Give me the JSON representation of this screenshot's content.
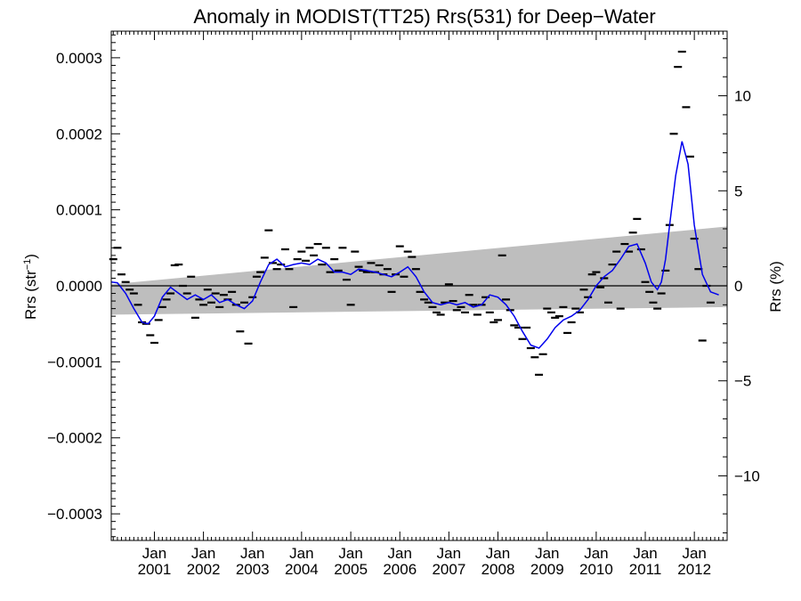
{
  "chart_data": {
    "type": "scatter",
    "title": "Anomaly in MODIST(TT25) Rrs(531) for Deep−Water",
    "ylabel_left": "Rrs (str",
    "ylabel_left_sup": "−1",
    "ylabel_left_close": ")",
    "ylabel_right": "Rrs (%)",
    "x_range": [
      "2000-02-15",
      "2012-09-01"
    ],
    "y_range": [
      -0.000335,
      0.000335
    ],
    "y_right_range": [
      -13.4,
      13.4
    ],
    "x_ticks": [
      {
        "date": "2001-01-01",
        "line1": "Jan",
        "line2": "2001"
      },
      {
        "date": "2002-01-01",
        "line1": "Jan",
        "line2": "2002"
      },
      {
        "date": "2003-01-01",
        "line1": "Jan",
        "line2": "2003"
      },
      {
        "date": "2004-01-01",
        "line1": "Jan",
        "line2": "2004"
      },
      {
        "date": "2005-01-01",
        "line1": "Jan",
        "line2": "2005"
      },
      {
        "date": "2006-01-01",
        "line1": "Jan",
        "line2": "2006"
      },
      {
        "date": "2007-01-01",
        "line1": "Jan",
        "line2": "2007"
      },
      {
        "date": "2008-01-01",
        "line1": "Jan",
        "line2": "2008"
      },
      {
        "date": "2009-01-01",
        "line1": "Jan",
        "line2": "2009"
      },
      {
        "date": "2010-01-01",
        "line1": "Jan",
        "line2": "2010"
      },
      {
        "date": "2011-01-01",
        "line1": "Jan",
        "line2": "2011"
      },
      {
        "date": "2012-01-01",
        "line1": "Jan",
        "line2": "2012"
      }
    ],
    "y_left_ticks": [
      {
        "value": 0.0003,
        "label": "0.0003"
      },
      {
        "value": 0.0002,
        "label": "0.0002"
      },
      {
        "value": 0.0001,
        "label": "0.0001"
      },
      {
        "value": 0.0,
        "label": "0.0000"
      },
      {
        "value": -0.0001,
        "label": "−0.0001"
      },
      {
        "value": -0.0002,
        "label": "−0.0002"
      },
      {
        "value": -0.0003,
        "label": "−0.0003"
      }
    ],
    "y_right_ticks": [
      {
        "value": 10,
        "label": "10"
      },
      {
        "value": 5,
        "label": "5"
      },
      {
        "value": 0,
        "label": "0"
      },
      {
        "value": -5,
        "label": "−5"
      },
      {
        "value": -10,
        "label": "−10"
      }
    ],
    "colors": {
      "smooth_line": "#0000ee",
      "band": "#bebebe",
      "points": "#000000",
      "zero_line": "#000000"
    },
    "confidence_band": {
      "x": [
        "2000-02-15",
        "2012-09-01"
      ],
      "upper": [
        2e-06,
        7.8e-05
      ],
      "lower": [
        -3.8e-05,
        -2.8e-05
      ]
    },
    "series": [
      {
        "style": "dash-marker",
        "points": [
          [
            "2000-03-01",
            3.5e-05
          ],
          [
            "2000-04-01",
            5e-05
          ],
          [
            "2000-05-01",
            1.5e-05
          ],
          [
            "2000-06-01",
            5e-06
          ],
          [
            "2000-07-01",
            -5e-06
          ],
          [
            "2000-08-01",
            -1e-05
          ],
          [
            "2000-09-01",
            -2.5e-05
          ],
          [
            "2000-10-01",
            -4.8e-05
          ],
          [
            "2000-11-01",
            -5e-05
          ],
          [
            "2000-12-01",
            -6.5e-05
          ],
          [
            "2001-01-01",
            -7.5e-05
          ],
          [
            "2001-02-01",
            -4.5e-05
          ],
          [
            "2001-03-01",
            -2.8e-05
          ],
          [
            "2001-04-01",
            -1.8e-05
          ],
          [
            "2001-05-01",
            -1e-05
          ],
          [
            "2001-06-01",
            2.7e-05
          ],
          [
            "2001-07-01",
            2.8e-05
          ],
          [
            "2001-08-01",
            0.0
          ],
          [
            "2001-09-01",
            -1e-05
          ],
          [
            "2001-10-01",
            1.2e-05
          ],
          [
            "2001-11-01",
            -4.2e-05
          ],
          [
            "2001-12-01",
            -1.8e-05
          ],
          [
            "2002-01-01",
            -2.5e-05
          ],
          [
            "2002-02-01",
            -5e-06
          ],
          [
            "2002-03-01",
            -2.2e-05
          ],
          [
            "2002-04-01",
            -1e-05
          ],
          [
            "2002-05-01",
            -2.8e-05
          ],
          [
            "2002-06-01",
            -1.2e-05
          ],
          [
            "2002-07-01",
            -1.8e-05
          ],
          [
            "2002-08-01",
            -8e-06
          ],
          [
            "2002-09-01",
            -2.5e-05
          ],
          [
            "2002-10-01",
            -6e-05
          ],
          [
            "2002-11-01",
            -2.2e-05
          ],
          [
            "2002-12-01",
            -7.6e-05
          ],
          [
            "2003-01-01",
            -1.5e-05
          ],
          [
            "2003-02-01",
            1.2e-05
          ],
          [
            "2003-03-01",
            1.8e-05
          ],
          [
            "2003-04-01",
            3.7e-05
          ],
          [
            "2003-05-01",
            7.3e-05
          ],
          [
            "2003-06-01",
            3e-05
          ],
          [
            "2003-07-01",
            2.2e-05
          ],
          [
            "2003-08-01",
            2.8e-05
          ],
          [
            "2003-09-01",
            4.8e-05
          ],
          [
            "2003-10-01",
            2.2e-05
          ],
          [
            "2003-11-01",
            -2.8e-05
          ],
          [
            "2003-12-01",
            3.5e-05
          ],
          [
            "2004-01-01",
            4.5e-05
          ],
          [
            "2004-02-01",
            3.3e-05
          ],
          [
            "2004-03-01",
            5e-05
          ],
          [
            "2004-04-01",
            4e-05
          ],
          [
            "2004-05-01",
            5.5e-05
          ],
          [
            "2004-06-01",
            2.8e-05
          ],
          [
            "2004-07-01",
            5e-05
          ],
          [
            "2004-08-01",
            1.8e-05
          ],
          [
            "2004-09-01",
            3.5e-05
          ],
          [
            "2004-10-01",
            2e-05
          ],
          [
            "2004-11-01",
            5e-05
          ],
          [
            "2004-12-01",
            8e-06
          ],
          [
            "2005-01-01",
            -2.5e-05
          ],
          [
            "2005-02-01",
            4.5e-05
          ],
          [
            "2005-03-01",
            2.5e-05
          ],
          [
            "2005-04-01",
            2e-05
          ],
          [
            "2005-05-01",
            1.8e-05
          ],
          [
            "2005-06-01",
            3e-05
          ],
          [
            "2005-07-01",
            1.8e-05
          ],
          [
            "2005-08-01",
            2.7e-05
          ],
          [
            "2005-09-01",
            1.5e-05
          ],
          [
            "2005-10-01",
            2.2e-05
          ],
          [
            "2005-11-01",
            -8e-06
          ],
          [
            "2005-12-01",
            1.5e-05
          ],
          [
            "2006-01-01",
            5.2e-05
          ],
          [
            "2006-02-01",
            1.2e-05
          ],
          [
            "2006-03-01",
            4.5e-05
          ],
          [
            "2006-04-01",
            3.8e-05
          ],
          [
            "2006-05-01",
            2.2e-05
          ],
          [
            "2006-06-01",
            -8e-06
          ],
          [
            "2006-07-01",
            -1.8e-05
          ],
          [
            "2006-08-01",
            -2.2e-05
          ],
          [
            "2006-09-01",
            -2.8e-05
          ],
          [
            "2006-10-01",
            -3.5e-05
          ],
          [
            "2006-11-01",
            -3.8e-05
          ],
          [
            "2006-12-01",
            -2.2e-05
          ],
          [
            "2007-01-01",
            2e-06
          ],
          [
            "2007-02-01",
            -2e-05
          ],
          [
            "2007-03-01",
            -3.2e-05
          ],
          [
            "2007-04-01",
            -2.8e-05
          ],
          [
            "2007-05-01",
            -3.5e-05
          ],
          [
            "2007-06-01",
            -1.2e-05
          ],
          [
            "2007-07-01",
            -2.5e-05
          ],
          [
            "2007-08-01",
            -3.8e-05
          ],
          [
            "2007-09-01",
            -2.5e-05
          ],
          [
            "2007-10-01",
            -1.5e-05
          ],
          [
            "2007-11-01",
            -3.5e-05
          ],
          [
            "2007-12-01",
            -4.8e-05
          ],
          [
            "2008-01-01",
            -4.5e-05
          ],
          [
            "2008-02-01",
            4e-05
          ],
          [
            "2008-03-01",
            -1.8e-05
          ],
          [
            "2008-04-01",
            -3.2e-05
          ],
          [
            "2008-05-01",
            -5.2e-05
          ],
          [
            "2008-06-01",
            -5.5e-05
          ],
          [
            "2008-07-01",
            -7e-05
          ],
          [
            "2008-08-01",
            -5.5e-05
          ],
          [
            "2008-09-01",
            -8.2e-05
          ],
          [
            "2008-10-01",
            -9.4e-05
          ],
          [
            "2008-11-01",
            -0.000117
          ],
          [
            "2008-12-01",
            -9e-05
          ],
          [
            "2009-01-01",
            -3e-05
          ],
          [
            "2009-02-01",
            -3.5e-05
          ],
          [
            "2009-03-01",
            -4.2e-05
          ],
          [
            "2009-04-01",
            -4e-05
          ],
          [
            "2009-05-01",
            -2.8e-05
          ],
          [
            "2009-06-01",
            -6.2e-05
          ],
          [
            "2009-07-01",
            -4.8e-05
          ],
          [
            "2009-08-01",
            -3e-05
          ],
          [
            "2009-09-01",
            -3.5e-05
          ],
          [
            "2009-10-01",
            -5e-06
          ],
          [
            "2009-11-01",
            -1.5e-05
          ],
          [
            "2009-12-01",
            1.5e-05
          ],
          [
            "2010-01-01",
            1.8e-05
          ],
          [
            "2010-02-01",
            -2e-06
          ],
          [
            "2010-03-01",
            1e-05
          ],
          [
            "2010-04-01",
            -2.2e-05
          ],
          [
            "2010-05-01",
            2.8e-05
          ],
          [
            "2010-06-01",
            4.5e-05
          ],
          [
            "2010-07-01",
            -3e-05
          ],
          [
            "2010-08-01",
            5.5e-05
          ],
          [
            "2010-09-01",
            4.5e-05
          ],
          [
            "2010-10-01",
            7e-05
          ],
          [
            "2010-11-01",
            8.8e-05
          ],
          [
            "2010-12-01",
            4.8e-05
          ],
          [
            "2011-01-01",
            5e-06
          ],
          [
            "2011-02-01",
            -8e-06
          ],
          [
            "2011-03-01",
            -2.2e-05
          ],
          [
            "2011-04-01",
            -3e-05
          ],
          [
            "2011-05-01",
            -1e-05
          ],
          [
            "2011-06-01",
            2e-05
          ],
          [
            "2011-07-01",
            8e-05
          ],
          [
            "2011-08-01",
            0.0002
          ],
          [
            "2011-09-01",
            0.000288
          ],
          [
            "2011-10-01",
            0.000308
          ],
          [
            "2011-11-01",
            0.000235
          ],
          [
            "2011-12-01",
            0.00017
          ],
          [
            "2012-01-01",
            6.2e-05
          ],
          [
            "2012-02-01",
            2.2e-05
          ],
          [
            "2012-03-01",
            -7.2e-05
          ],
          [
            "2012-04-01",
            0.0
          ],
          [
            "2012-05-01",
            -2.2e-05
          ]
        ]
      },
      {
        "style": "line",
        "points": [
          [
            "2000-02-15",
            5e-06
          ],
          [
            "2000-04-01",
            4e-06
          ],
          [
            "2000-06-01",
            -1e-05
          ],
          [
            "2000-08-01",
            -3e-05
          ],
          [
            "2000-10-01",
            -4.8e-05
          ],
          [
            "2000-11-15",
            -5e-05
          ],
          [
            "2001-01-01",
            -4e-05
          ],
          [
            "2001-03-01",
            -1.5e-05
          ],
          [
            "2001-05-01",
            -2e-06
          ],
          [
            "2001-07-01",
            -1e-05
          ],
          [
            "2001-09-01",
            -1.8e-05
          ],
          [
            "2001-11-01",
            -1.2e-05
          ],
          [
            "2002-01-01",
            -1.8e-05
          ],
          [
            "2002-03-01",
            -1.2e-05
          ],
          [
            "2002-05-01",
            -2.2e-05
          ],
          [
            "2002-07-01",
            -1.8e-05
          ],
          [
            "2002-09-01",
            -2.5e-05
          ],
          [
            "2002-11-01",
            -3e-05
          ],
          [
            "2003-01-01",
            -2e-05
          ],
          [
            "2003-03-01",
            5e-06
          ],
          [
            "2003-05-01",
            2.8e-05
          ],
          [
            "2003-07-01",
            3.5e-05
          ],
          [
            "2003-09-01",
            2.5e-05
          ],
          [
            "2003-11-01",
            2.8e-05
          ],
          [
            "2004-01-01",
            3e-05
          ],
          [
            "2004-03-01",
            2.8e-05
          ],
          [
            "2004-05-01",
            3.5e-05
          ],
          [
            "2004-07-01",
            3e-05
          ],
          [
            "2004-09-01",
            1.8e-05
          ],
          [
            "2004-11-01",
            1.8e-05
          ],
          [
            "2005-01-01",
            1.5e-05
          ],
          [
            "2005-03-01",
            2.2e-05
          ],
          [
            "2005-05-01",
            2e-05
          ],
          [
            "2005-07-01",
            1.8e-05
          ],
          [
            "2005-09-01",
            1.5e-05
          ],
          [
            "2005-11-01",
            1.2e-05
          ],
          [
            "2006-01-01",
            1.8e-05
          ],
          [
            "2006-03-01",
            2.5e-05
          ],
          [
            "2006-05-01",
            1.2e-05
          ],
          [
            "2006-07-01",
            -8e-06
          ],
          [
            "2006-09-01",
            -2.2e-05
          ],
          [
            "2006-11-01",
            -2.5e-05
          ],
          [
            "2007-01-01",
            -2.2e-05
          ],
          [
            "2007-03-01",
            -2.5e-05
          ],
          [
            "2007-05-01",
            -2.2e-05
          ],
          [
            "2007-07-01",
            -2.8e-05
          ],
          [
            "2007-09-01",
            -2.5e-05
          ],
          [
            "2007-11-01",
            -1.2e-05
          ],
          [
            "2008-01-01",
            -1.5e-05
          ],
          [
            "2008-03-01",
            -2.5e-05
          ],
          [
            "2008-05-01",
            -4e-05
          ],
          [
            "2008-07-01",
            -6e-05
          ],
          [
            "2008-09-01",
            -7.8e-05
          ],
          [
            "2008-11-01",
            -8.2e-05
          ],
          [
            "2009-01-01",
            -7e-05
          ],
          [
            "2009-03-01",
            -5.5e-05
          ],
          [
            "2009-05-01",
            -4.5e-05
          ],
          [
            "2009-07-01",
            -4e-05
          ],
          [
            "2009-09-01",
            -3.2e-05
          ],
          [
            "2009-11-01",
            -1.8e-05
          ],
          [
            "2010-01-01",
            0.0
          ],
          [
            "2010-03-01",
            1.2e-05
          ],
          [
            "2010-05-01",
            2e-05
          ],
          [
            "2010-07-01",
            3.5e-05
          ],
          [
            "2010-09-01",
            5.2e-05
          ],
          [
            "2010-11-01",
            5.5e-05
          ],
          [
            "2011-01-01",
            3e-05
          ],
          [
            "2011-02-15",
            5e-06
          ],
          [
            "2011-04-01",
            -5e-06
          ],
          [
            "2011-05-01",
            5e-06
          ],
          [
            "2011-06-01",
            3.5e-05
          ],
          [
            "2011-07-01",
            8e-05
          ],
          [
            "2011-08-15",
            0.000145
          ],
          [
            "2011-10-01",
            0.00019
          ],
          [
            "2011-11-15",
            0.00016
          ],
          [
            "2012-01-01",
            8e-05
          ],
          [
            "2012-03-01",
            1.5e-05
          ],
          [
            "2012-05-01",
            -8e-06
          ],
          [
            "2012-07-01",
            -1.2e-05
          ]
        ]
      }
    ]
  }
}
